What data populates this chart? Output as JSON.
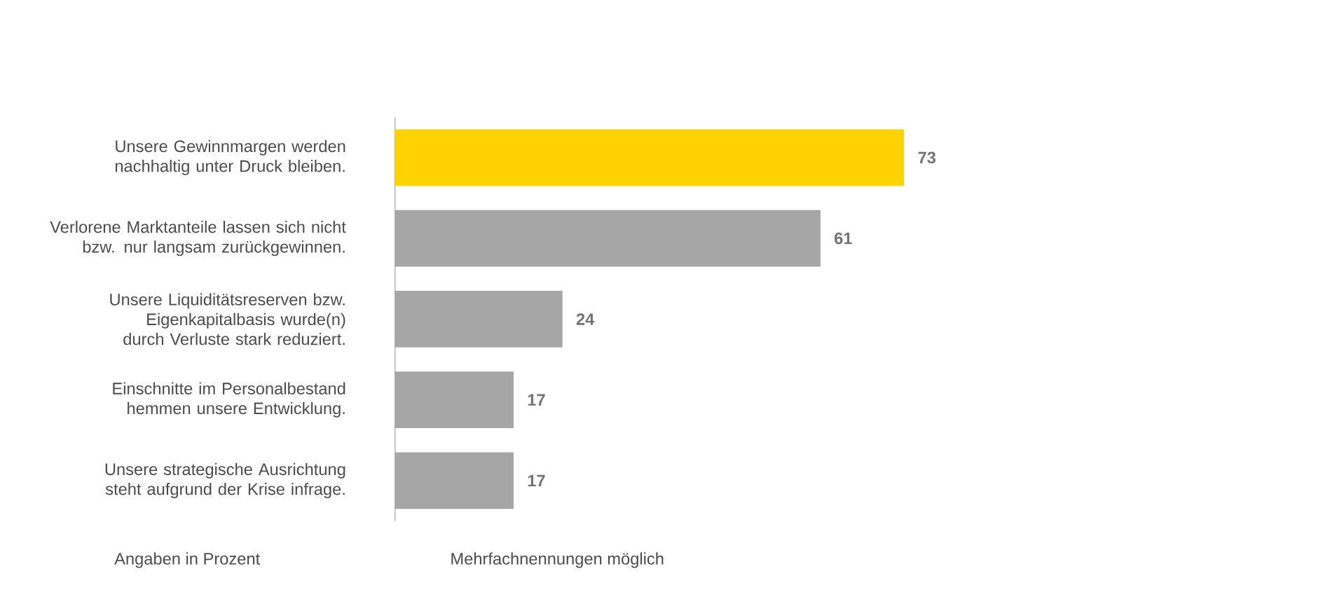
{
  "chart_data": {
    "type": "bar",
    "orientation": "horizontal",
    "categories": [
      "Unsere Gewinnmargen werden nachhaltig unter Druck bleiben.",
      "Verlorene Marktanteile lassen sich nicht bzw. nur langsam zurückgewinnen.",
      "Unsere Liquiditätsreserven bzw. Eigenkapitalbasis wurde(n) durch Verluste stark reduziert.",
      "Einschnitte im Personalbestand hemmen unsere Entwicklung.",
      "Unsere strategische Ausrichtung steht aufgrund der Krise infrage."
    ],
    "values": [
      73,
      61,
      24,
      17,
      17
    ],
    "colors": [
      "#ffd200",
      "#a6a6a6",
      "#a6a6a6",
      "#a6a6a6",
      "#a6a6a6"
    ],
    "data_labels": true,
    "annotations": [
      "Angaben in Prozent",
      "Mehrfachnennungen möglich"
    ]
  }
}
